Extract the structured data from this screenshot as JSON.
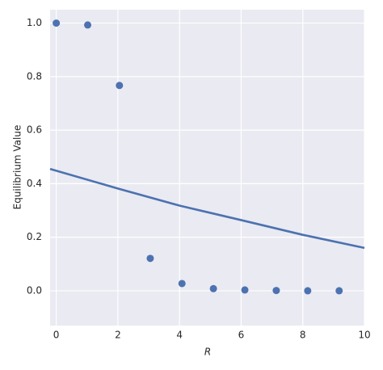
{
  "chart_data": {
    "type": "scatter",
    "x_label": "R",
    "y_label": "Equilibrium Value",
    "xlim": [
      -0.2,
      10
    ],
    "ylim": [
      -0.13,
      1.05
    ],
    "xticks": [
      0,
      2,
      4,
      6,
      8,
      10
    ],
    "yticks": [
      {
        "value": 0,
        "label": "0.0"
      },
      {
        "value": 0.2,
        "label": "0.2"
      },
      {
        "value": 0.4,
        "label": "0.4"
      },
      {
        "value": 0.6,
        "label": "0.6"
      },
      {
        "value": 0.8,
        "label": "0.8"
      },
      {
        "value": 1,
        "label": "1.0"
      }
    ],
    "grid": true,
    "background": "#eaeaf2",
    "series": [
      {
        "mode": "markers",
        "color": "#4c72b0",
        "x": [
          0,
          1.02,
          2.05,
          3.05,
          4.08,
          5.1,
          6.12,
          7.14,
          8.16,
          9.18
        ],
        "values": [
          1.0,
          0.993,
          0.767,
          0.121,
          0.027,
          0.008,
          0.003,
          0.001,
          0.0,
          0.0
        ]
      },
      {
        "mode": "line",
        "color": "#4c72b0",
        "x": [
          -0.2,
          2,
          4,
          6,
          8,
          10
        ],
        "values": [
          0.455,
          0.382,
          0.318,
          0.264,
          0.209,
          0.16
        ]
      }
    ]
  }
}
